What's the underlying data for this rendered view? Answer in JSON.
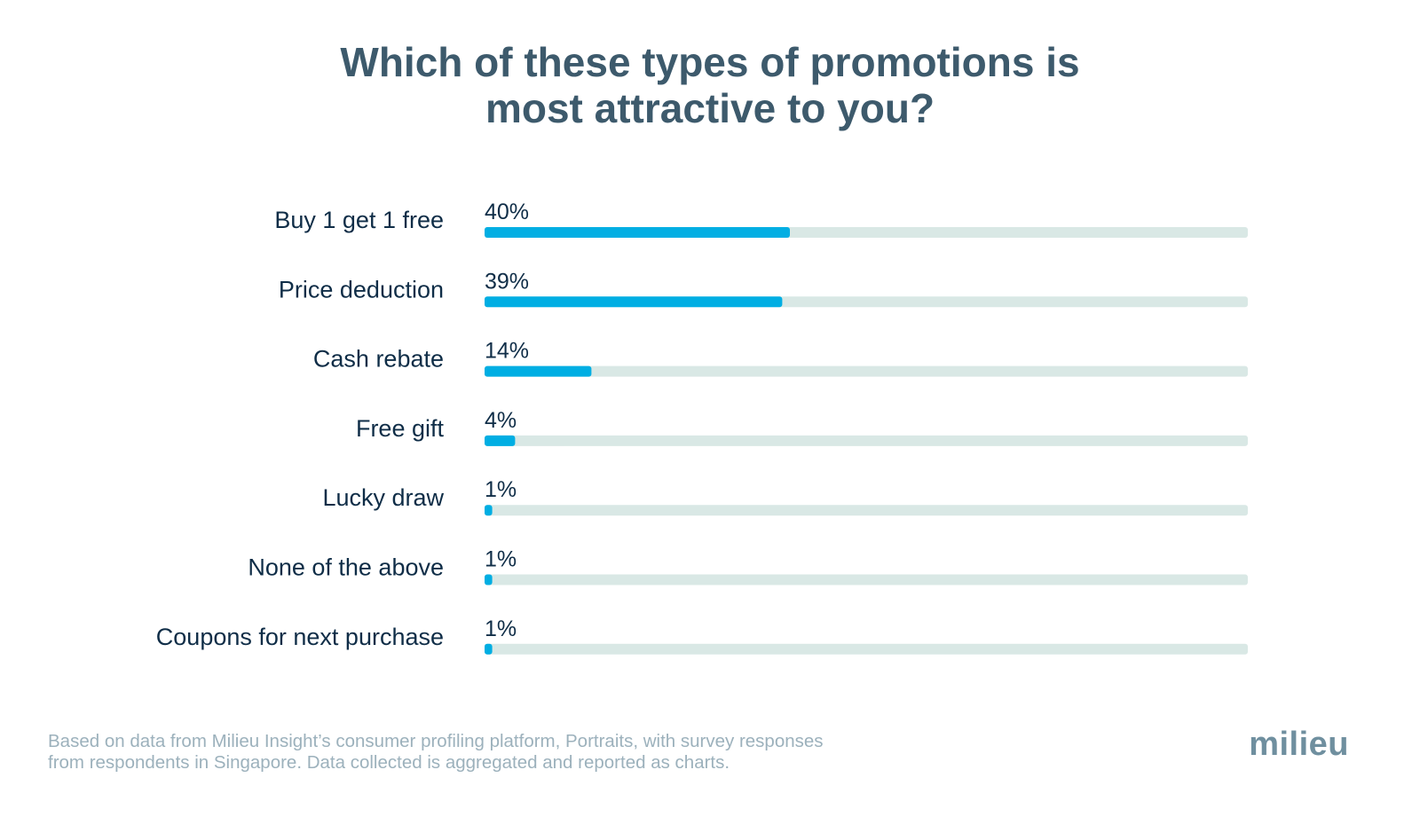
{
  "header": {
    "title_line1": "Which of these types of promotions is",
    "title_line2": "most attractive to you?"
  },
  "chart_data": {
    "type": "bar",
    "orientation": "horizontal",
    "categories": [
      "Buy 1 get 1 free",
      "Price deduction",
      "Cash rebate",
      "Free gift",
      "Lucky draw",
      "None of the above",
      "Coupons for next purchase"
    ],
    "values": [
      40,
      39,
      14,
      4,
      1,
      1,
      1
    ],
    "value_labels": [
      "40%",
      "39%",
      "14%",
      "4%",
      "1%",
      "1%",
      "1%"
    ],
    "unit": "%",
    "xlim": [
      0,
      100
    ],
    "grid": false,
    "bar_color": "#00aee3",
    "track_color": "#d9e8e5"
  },
  "footer": {
    "note_line1": "Based on data from Milieu Insight’s consumer profiling platform, Portraits, with survey responses",
    "note_line2": "from respondents in Singapore. Data collected is aggregated and reported as charts.",
    "logo_text": "milieu"
  },
  "colors": {
    "title": "#3d5a6c",
    "label": "#0f2d47",
    "footnote": "#9cb1bc",
    "logo": "#6f8f9f"
  }
}
